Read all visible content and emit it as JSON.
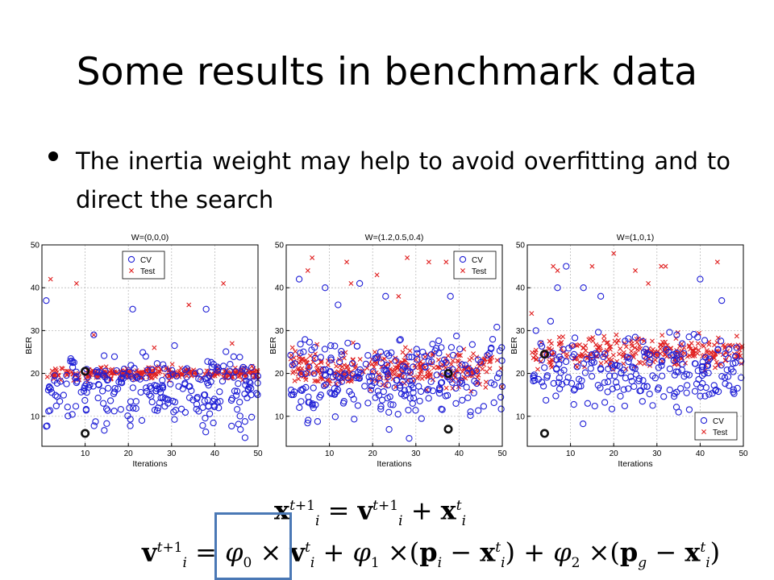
{
  "slide": {
    "title": "Some results in benchmark data",
    "bullet": "The inertia weight may help to avoid overfitting and to direct the search"
  },
  "formula": {
    "line1": "x^{t+1}_i = v^{t+1}_i + x^t_i",
    "line2": "v^{t+1}_i = φ0 × v^t_i + φ1 × (p_i − x^t_i) + φ2 × (p_g − x^t_i)",
    "highlight_color": "#4a78b5"
  },
  "colors": {
    "cv": "#1f1fd6",
    "test": "#e02020",
    "selected": "#111111"
  },
  "chart_data": [
    {
      "type": "scatter",
      "title": "W=(0,0,0)",
      "xlabel": "Iterations",
      "ylabel": "BER",
      "xlim": [
        0,
        50
      ],
      "ylim": [
        3,
        50
      ],
      "xticks": [
        10,
        20,
        30,
        40,
        50
      ],
      "yticks": [
        10,
        20,
        30,
        40,
        50
      ],
      "grid": true,
      "legend": {
        "position": "top-left",
        "entries": [
          "CV",
          "Test"
        ]
      },
      "cv_center": 16,
      "cv_spread": 7,
      "test_center": 20,
      "test_spread": 1.2,
      "seed": 11,
      "test_outliers": [
        [
          2,
          42
        ],
        [
          8,
          41
        ],
        [
          34,
          36
        ],
        [
          42,
          41
        ],
        [
          44,
          27
        ],
        [
          12,
          29
        ],
        [
          26,
          26
        ]
      ],
      "cv_outliers": [
        [
          1,
          37
        ],
        [
          21,
          35
        ],
        [
          38,
          35
        ],
        [
          12,
          29
        ],
        [
          47,
          5
        ]
      ],
      "selected": [
        [
          10,
          20.5
        ],
        [
          10,
          6
        ]
      ],
      "series": [
        {
          "name": "CV",
          "marker": "circle",
          "n": 260
        },
        {
          "name": "Test",
          "marker": "x",
          "n": 300
        }
      ]
    },
    {
      "type": "scatter",
      "title": "W=(1.2,0.5,0.4)",
      "xlabel": "Iterations",
      "ylabel": "BER",
      "xlim": [
        0,
        50
      ],
      "ylim": [
        3,
        50
      ],
      "xticks": [
        10,
        20,
        30,
        40,
        50
      ],
      "yticks": [
        10,
        20,
        30,
        40,
        50
      ],
      "grid": true,
      "legend": {
        "position": "top-right",
        "entries": [
          "CV",
          "Test"
        ]
      },
      "cv_center": 19,
      "cv_spread": 8,
      "test_center": 21,
      "test_spread": 3.5,
      "seed": 23,
      "test_outliers": [
        [
          6,
          47
        ],
        [
          14,
          46
        ],
        [
          15,
          41
        ],
        [
          21,
          43
        ],
        [
          28,
          47
        ],
        [
          33,
          46
        ],
        [
          37,
          46
        ],
        [
          41,
          44
        ],
        [
          5,
          44
        ],
        [
          26,
          38
        ]
      ],
      "cv_outliers": [
        [
          3,
          42
        ],
        [
          9,
          40
        ],
        [
          17,
          41
        ],
        [
          23,
          38
        ],
        [
          38,
          38
        ],
        [
          12,
          36
        ]
      ],
      "selected": [
        [
          37.5,
          20
        ],
        [
          37.5,
          7
        ]
      ],
      "series": [
        {
          "name": "CV",
          "marker": "circle",
          "n": 260
        },
        {
          "name": "Test",
          "marker": "x",
          "n": 320
        }
      ]
    },
    {
      "type": "scatter",
      "title": "W=(1,0,1)",
      "xlabel": "Iterations",
      "ylabel": "BER",
      "xlim": [
        0,
        50
      ],
      "ylim": [
        3,
        50
      ],
      "xticks": [
        10,
        20,
        30,
        40,
        50
      ],
      "yticks": [
        10,
        20,
        30,
        40,
        50
      ],
      "grid": true,
      "legend": {
        "position": "bottom-right",
        "entries": [
          "CV",
          "Test"
        ]
      },
      "cv_center": 21,
      "cv_spread": 7,
      "test_center": 25,
      "test_spread": 3,
      "seed": 37,
      "test_outliers": [
        [
          6,
          45
        ],
        [
          7,
          44
        ],
        [
          15,
          45
        ],
        [
          20,
          48
        ],
        [
          25,
          44
        ],
        [
          31,
          45
        ],
        [
          32,
          45
        ],
        [
          44,
          46
        ],
        [
          28,
          41
        ],
        [
          1,
          34
        ]
      ],
      "cv_outliers": [
        [
          7,
          40
        ],
        [
          13,
          40
        ],
        [
          17,
          38
        ],
        [
          40,
          42
        ],
        [
          45,
          37
        ],
        [
          9,
          45
        ],
        [
          2,
          30
        ]
      ],
      "selected": [
        [
          4,
          24.5
        ],
        [
          4,
          6
        ]
      ],
      "series": [
        {
          "name": "CV",
          "marker": "circle",
          "n": 230
        },
        {
          "name": "Test",
          "marker": "x",
          "n": 280
        }
      ]
    }
  ]
}
